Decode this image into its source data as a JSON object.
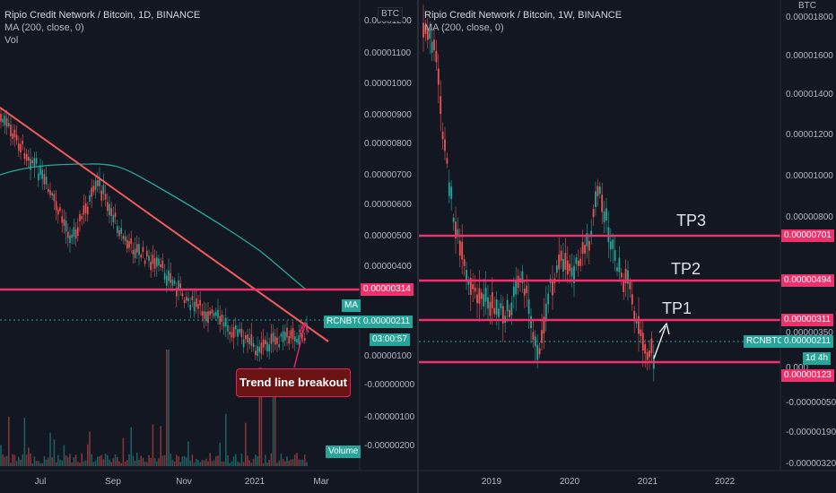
{
  "left": {
    "title": "Ripio Credit Network / Bitcoin, 1D, BINANCE",
    "ma": "MA (200, close, 0)",
    "vol": "Vol",
    "currency": "BTC",
    "y_ticks": [
      "0.00001200",
      "0.00001100",
      "0.00001000",
      "0.00000900",
      "0.00000800",
      "0.00000700",
      "0.00000600",
      "0.00000500",
      "0.00000400",
      "0.00000100",
      "-0.00000000",
      "-0.00000100",
      "-0.00000200"
    ],
    "x_ticks": [
      "Jul",
      "Sep",
      "Nov",
      "2021",
      "Mar"
    ],
    "tag_level": "0.00000314",
    "tag_ma": "MA",
    "tag_symbol": "RCNBTC",
    "tag_price": "0.00000211",
    "tag_countdown": "03:00:57",
    "tag_volume": "Volume",
    "callout": "Trend line breakout"
  },
  "right": {
    "title": "Ripio Credit Network / Bitcoin, 1W, BINANCE",
    "ma": "MA (200, close, 0)",
    "currency": "BTC",
    "y_ticks": [
      "0.00001800",
      "0.00001600",
      "0.00001400",
      "0.00001200",
      "0.00001000",
      "0.00000800",
      "0.00000350",
      "0.000",
      "-0.00000050",
      "-0.00000190",
      "-0.00000320"
    ],
    "x_ticks": [
      "2019",
      "2020",
      "2021",
      "2022"
    ],
    "tp_labels": [
      "TP3",
      "TP2",
      "TP1"
    ],
    "tag_tp3": "0.00000701",
    "tag_tp2": "0.00000494",
    "tag_tp1": "0.00000311",
    "tag_symbol": "RCNBTC",
    "tag_price": "0.00000211",
    "tag_time": "1d 4h",
    "tag_support": "0.00000123"
  },
  "colors": {
    "background": "#131722",
    "level_line": "#f0306a",
    "trend_line": "#ef5a5a",
    "ma_line": "#26a69a",
    "candle_up": "#26a69a",
    "candle_down": "#ef5350",
    "price_tag": "#26a69a"
  }
}
